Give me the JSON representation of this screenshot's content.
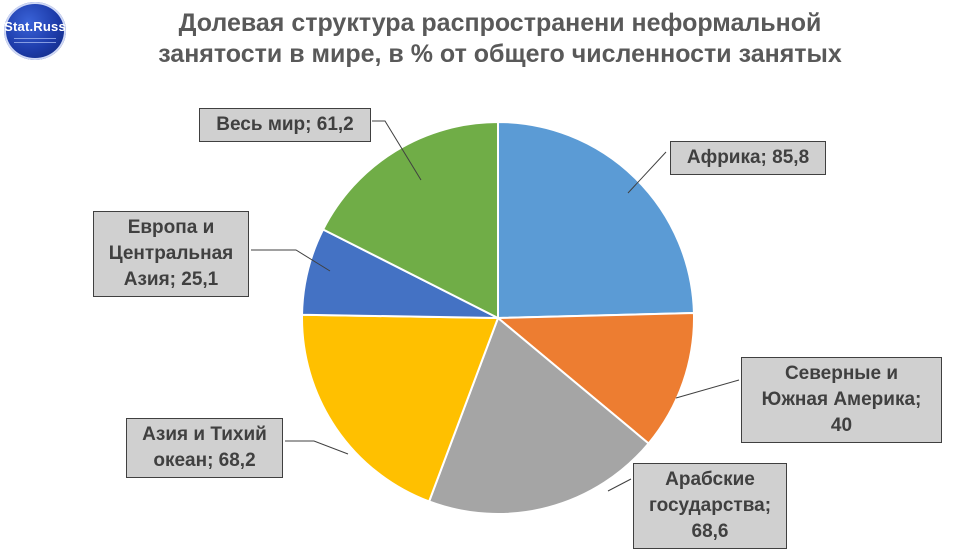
{
  "logo": {
    "text": "Stat.Russ"
  },
  "chart_data": {
    "type": "pie",
    "title": "Долевая структура распространени неформальной занятости в мире, в % от общего численности занятых",
    "title_lines": [
      "Долевая структура распространени неформальной",
      "занятости в мире, в % от общего численности занятых"
    ],
    "series": [
      {
        "values": [
          85.8,
          40,
          68.6,
          68.2,
          25.1,
          61.2
        ],
        "categories": [
          "Африка",
          "Северные и Южная Америка",
          "Арабские государства",
          "Азия и Тихий океан",
          "Европа и Центральная Азия",
          "Весь мир"
        ],
        "colors": [
          "#5b9bd5",
          "#ed7d31",
          "#a5a5a5",
          "#ffc000",
          "#4472c4",
          "#70ad47"
        ]
      }
    ],
    "data_labels": [
      {
        "lines": [
          "Африка; 85,8"
        ]
      },
      {
        "lines": [
          "Северные и",
          "Южная Америка;",
          "40"
        ]
      },
      {
        "lines": [
          "Арабские",
          "государства;",
          "68,6"
        ]
      },
      {
        "lines": [
          "Азия и Тихий",
          "океан; 68,2"
        ]
      },
      {
        "lines": [
          "Европа и",
          "Центральная",
          "Азия; 25,1"
        ]
      }
    ],
    "data_label_world": {
      "lines": [
        "Весь мир; 61,2"
      ]
    },
    "legend": "none"
  }
}
